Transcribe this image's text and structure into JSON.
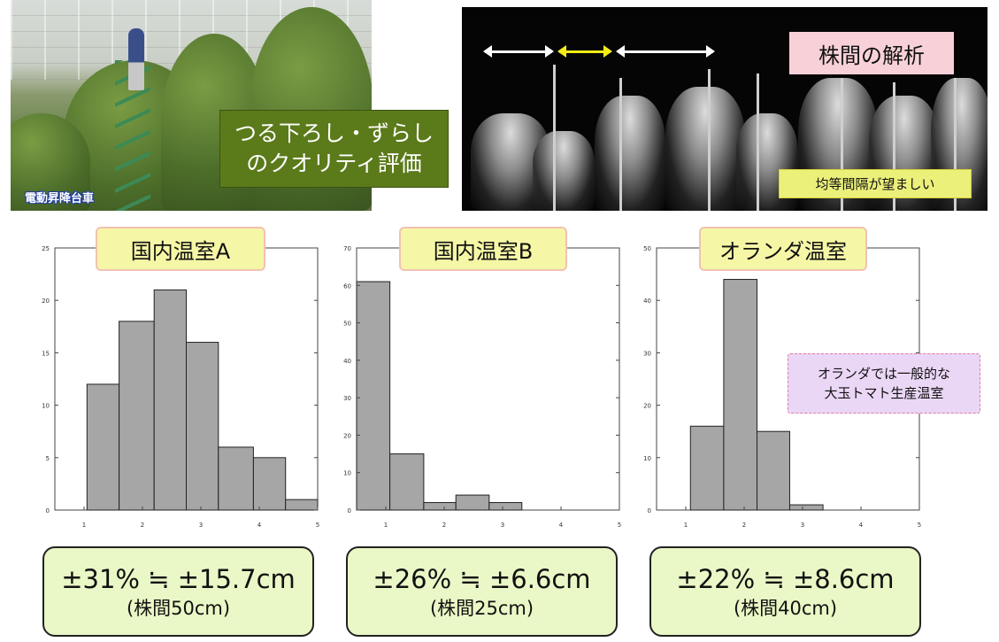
{
  "photos": {
    "left_tag": "電動昇降台車",
    "green_box": {
      "line1": "つる下ろし・ずらし",
      "line2": "のクオリティ評価"
    },
    "right_title": "株間の解析",
    "right_note": "均等間隔が望ましい"
  },
  "note": {
    "line1": "オランダでは一般的な",
    "line2": "大玉トマト生産温室"
  },
  "colors": {
    "bar_fill": "#a6a6a6",
    "bar_stroke": "#222222",
    "title_bg": "#f5f7a6",
    "summary_bg": "#eaf7c6",
    "note_bg": "#ead7f6"
  },
  "chart_data": [
    {
      "type": "bar",
      "title": "国内温室A",
      "x_ticks": [
        1,
        2,
        3,
        4,
        5
      ],
      "y_ticks": [
        0,
        5,
        10,
        15,
        20,
        25
      ],
      "ylim": [
        0,
        25
      ],
      "xlim": [
        0.5,
        5
      ],
      "bins": [
        [
          1.05,
          1.6
        ],
        [
          1.6,
          2.2
        ],
        [
          2.2,
          2.75
        ],
        [
          2.75,
          3.3
        ],
        [
          3.3,
          3.9
        ],
        [
          3.9,
          4.45
        ],
        [
          4.45,
          5.0
        ]
      ],
      "values": [
        12,
        18,
        21,
        16,
        6,
        5,
        1
      ],
      "grid": false
    },
    {
      "type": "bar",
      "title": "国内温室B",
      "x_ticks": [
        1,
        2,
        3,
        4,
        5
      ],
      "y_ticks": [
        0,
        10,
        20,
        30,
        40,
        50,
        60,
        70
      ],
      "ylim": [
        0,
        70
      ],
      "xlim": [
        0.5,
        5
      ],
      "bins": [
        [
          0.5,
          1.07
        ],
        [
          1.07,
          1.65
        ],
        [
          1.65,
          2.2
        ],
        [
          2.2,
          2.77
        ],
        [
          2.77,
          3.33
        ]
      ],
      "values": [
        61,
        15,
        2,
        4,
        2
      ],
      "grid": false
    },
    {
      "type": "bar",
      "title": "オランダ温室",
      "x_ticks": [
        1,
        2,
        3,
        4,
        5
      ],
      "y_ticks": [
        0,
        10,
        20,
        30,
        40,
        50
      ],
      "ylim": [
        0,
        50
      ],
      "xlim": [
        0.5,
        5
      ],
      "bins": [
        [
          1.08,
          1.65
        ],
        [
          1.65,
          2.22
        ],
        [
          2.22,
          2.78
        ],
        [
          2.78,
          3.35
        ]
      ],
      "values": [
        16,
        44,
        15,
        1
      ],
      "grid": false
    }
  ],
  "summaries": [
    {
      "main": "±31% ≒ ±15.7cm",
      "sub": "(株間50cm)"
    },
    {
      "main": "±26% ≒ ±6.6cm",
      "sub": "(株間25cm)"
    },
    {
      "main": "±22% ≒ ±8.6cm",
      "sub": "(株間40cm)"
    }
  ]
}
